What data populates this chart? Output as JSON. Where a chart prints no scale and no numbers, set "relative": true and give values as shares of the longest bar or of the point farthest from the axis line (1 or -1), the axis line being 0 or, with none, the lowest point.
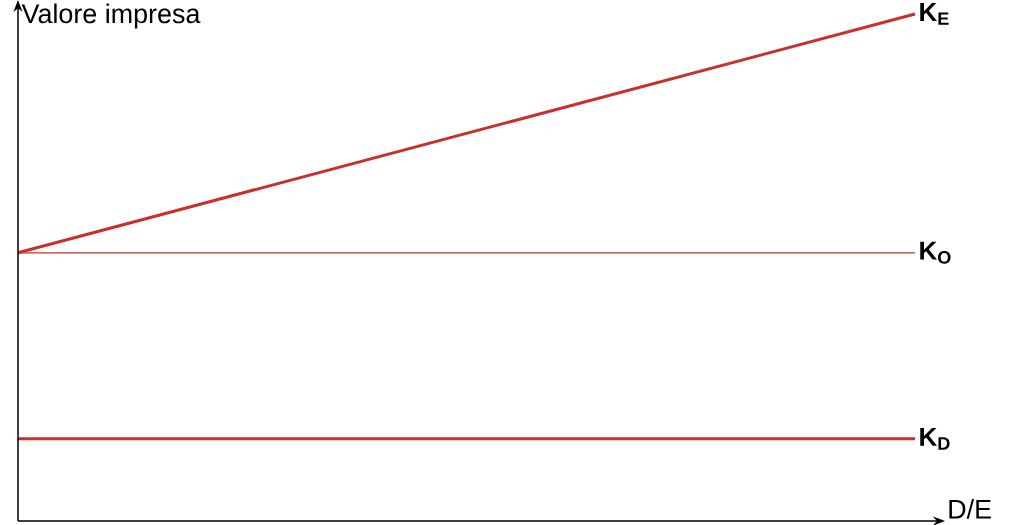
{
  "chart_data": {
    "type": "line",
    "relative": true,
    "ylabel": "Valore impresa",
    "xlabel": "D/E",
    "categories": [
      null,
      null
    ],
    "series": [
      {
        "name": "K$_{E}$",
        "color": "#c8302c",
        "values": [
          0.529,
          1
        ]
      },
      {
        "name": "K$_{O}$",
        "color": "#c8302c",
        "values": [
          0.529,
          0.529
        ]
      },
      {
        "name": "K$_{D}$",
        "color": "#c8302c",
        "values": [
          0.162,
          0.162
        ]
      }
    ],
    "marker": "none",
    "line_style": "solid",
    "legend": false
  }
}
